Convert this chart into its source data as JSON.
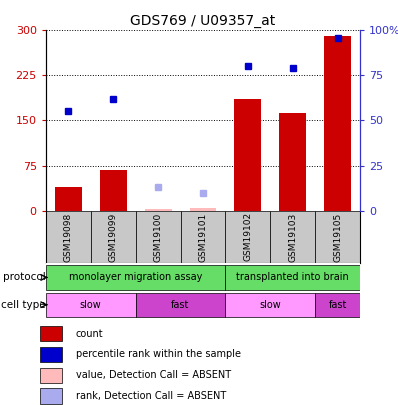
{
  "title": "GDS769 / U09357_at",
  "samples": [
    "GSM19098",
    "GSM19099",
    "GSM19100",
    "GSM19101",
    "GSM19102",
    "GSM19103",
    "GSM19105"
  ],
  "bar_values": [
    40,
    68,
    3,
    4,
    185,
    163,
    290
  ],
  "bar_absent": [
    false,
    false,
    true,
    true,
    false,
    false,
    false
  ],
  "blue_dot_values": [
    165,
    185,
    null,
    null,
    240,
    238,
    288
  ],
  "blue_dot_absent_values": [
    null,
    null,
    13,
    10,
    null,
    null,
    null
  ],
  "bar_absent_values": [
    null,
    null,
    3,
    4,
    null,
    null,
    null
  ],
  "ylim_left": [
    0,
    300
  ],
  "ylim_right": [
    0,
    100
  ],
  "yticks_left": [
    0,
    75,
    150,
    225,
    300
  ],
  "yticks_right": [
    0,
    25,
    50,
    75,
    100
  ],
  "ytick_labels_left": [
    "0",
    "75",
    "150",
    "225",
    "300"
  ],
  "ytick_labels_right": [
    "0",
    "25",
    "50",
    "75",
    "100%"
  ],
  "protocol_labels": [
    "monolayer migration assay",
    "transplanted into brain"
  ],
  "celltype_labels": [
    "slow",
    "fast",
    "slow",
    "fast"
  ],
  "protocol_color": "#66DD66",
  "celltype_slow_color": "#FF99FF",
  "celltype_fast_color": "#CC44CC",
  "bar_color": "#CC0000",
  "bar_absent_color": "#FFBBBB",
  "blue_dot_color": "#0000CC",
  "blue_dot_absent_color": "#AAAAEE",
  "sample_bg_color": "#C8C8C8",
  "right_axis_color": "#3333CC",
  "left_axis_color": "#CC0000",
  "figwidth": 3.98,
  "figheight": 4.05,
  "dpi": 100
}
